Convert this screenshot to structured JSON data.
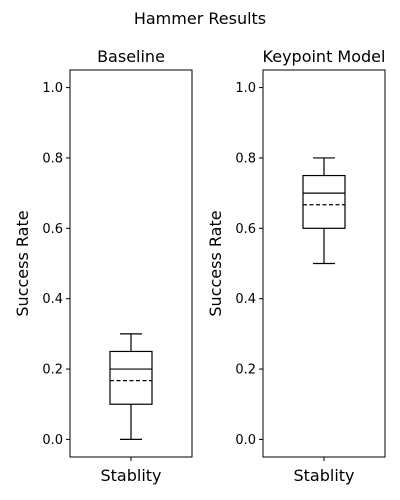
{
  "figure": {
    "suptitle": "Hammer Results"
  },
  "chart_data": [
    {
      "type": "box",
      "title": "Baseline",
      "xlabel": "",
      "ylabel": "Success Rate",
      "categories": [
        "Stablity"
      ],
      "ylim": [
        -0.05,
        1.05
      ],
      "yticks": [
        0.0,
        0.2,
        0.4,
        0.6,
        0.8,
        1.0
      ],
      "ytick_labels": [
        "0.0",
        "0.2",
        "0.4",
        "0.6",
        "0.8",
        "1.0"
      ],
      "box": {
        "whisker_low": 0.0,
        "q1": 0.1,
        "median": 0.2,
        "mean": 0.167,
        "q3": 0.25,
        "whisker_high": 0.3
      },
      "mean_line": "dashed",
      "grid": false
    },
    {
      "type": "box",
      "title": "Keypoint Model",
      "xlabel": "",
      "ylabel": "Success Rate",
      "categories": [
        "Stablity"
      ],
      "ylim": [
        -0.05,
        1.05
      ],
      "yticks": [
        0.0,
        0.2,
        0.4,
        0.6,
        0.8,
        1.0
      ],
      "ytick_labels": [
        "0.0",
        "0.2",
        "0.4",
        "0.6",
        "0.8",
        "1.0"
      ],
      "box": {
        "whisker_low": 0.5,
        "q1": 0.6,
        "median": 0.7,
        "mean": 0.667,
        "q3": 0.75,
        "whisker_high": 0.8
      },
      "mean_line": "dashed",
      "grid": false
    }
  ]
}
